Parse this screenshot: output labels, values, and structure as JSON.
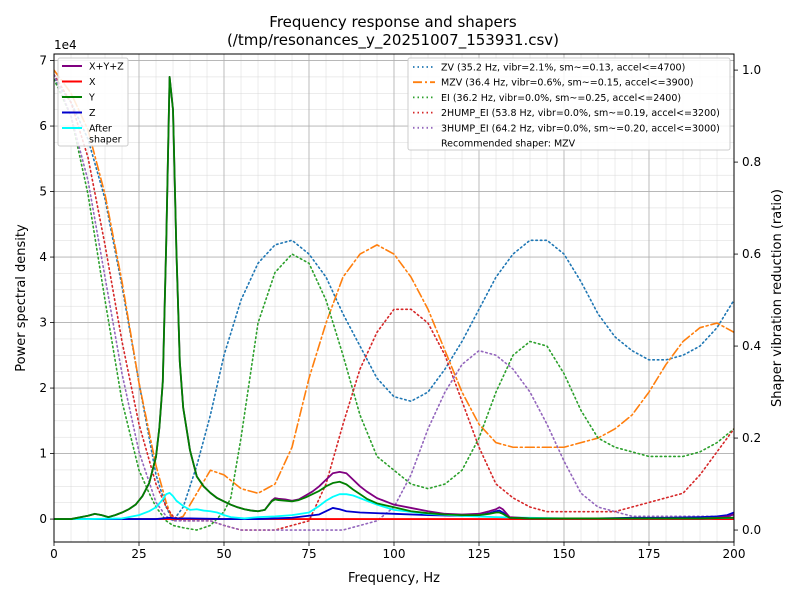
{
  "chart_data": {
    "type": "line",
    "title": "Frequency response and shapers",
    "subtitle": "(/tmp/resonances_y_20251007_153931.csv)",
    "xlabel": "Frequency, Hz",
    "ylabel": "Power spectral density",
    "y2label": "Shaper vibration reduction (ratio)",
    "y_multiplier_label": "1e4",
    "xlim": [
      0,
      200
    ],
    "ylim": [
      -0.35,
      7.1
    ],
    "y2lim": [
      -0.026,
      1.035
    ],
    "x_ticks": [
      0,
      25,
      50,
      75,
      100,
      125,
      150,
      175,
      200
    ],
    "y_ticks": [
      0,
      1,
      2,
      3,
      4,
      5,
      6,
      7
    ],
    "y2_ticks": [
      0.0,
      0.2,
      0.4,
      0.6,
      0.8,
      1.0
    ],
    "y2_tick_labels": [
      "0.0",
      "0.2",
      "0.4",
      "0.6",
      "0.8",
      "1.0"
    ],
    "grid": true,
    "psd_legend": {
      "placement": "top-left"
    },
    "shaper_legend": {
      "placement": "top-right",
      "note": "Recommended shaper: MZV"
    },
    "psd_series": [
      {
        "name": "X+Y+Z",
        "color": "#800080",
        "dash": "solid",
        "x": [
          0,
          5,
          10,
          12,
          14,
          16,
          18,
          20,
          22,
          24,
          26,
          28,
          30,
          31,
          32,
          33,
          34,
          35,
          36,
          37,
          38,
          40,
          42,
          44,
          46,
          48,
          50,
          52,
          54,
          56,
          58,
          60,
          62,
          64,
          65,
          66,
          68,
          70,
          72,
          74,
          76,
          78,
          80,
          82,
          84,
          86,
          88,
          90,
          92,
          95,
          100,
          105,
          110,
          115,
          120,
          125,
          128,
          130,
          131,
          132,
          134,
          140,
          150,
          160,
          170,
          180,
          190,
          195,
          198,
          200
        ],
        "y": [
          0,
          0,
          0.05,
          0.08,
          0.06,
          0.03,
          0.06,
          0.1,
          0.15,
          0.22,
          0.35,
          0.55,
          0.95,
          1.4,
          2.1,
          4.2,
          6.75,
          6.25,
          4.1,
          2.4,
          1.7,
          1.05,
          0.65,
          0.5,
          0.4,
          0.32,
          0.27,
          0.22,
          0.18,
          0.15,
          0.13,
          0.12,
          0.14,
          0.28,
          0.32,
          0.31,
          0.3,
          0.28,
          0.3,
          0.36,
          0.42,
          0.5,
          0.6,
          0.7,
          0.72,
          0.7,
          0.6,
          0.5,
          0.42,
          0.32,
          0.22,
          0.17,
          0.12,
          0.08,
          0.07,
          0.08,
          0.12,
          0.15,
          0.18,
          0.15,
          0.03,
          0.01,
          0.01,
          0.01,
          0.01,
          0.01,
          0.01,
          0.02,
          0.04,
          0.07
        ]
      },
      {
        "name": "X",
        "color": "#ff0000",
        "dash": "solid",
        "x": [
          0,
          20,
          40,
          60,
          80,
          100,
          130,
          160,
          180,
          200
        ],
        "y": [
          0,
          0,
          0,
          0,
          0,
          0,
          0,
          0,
          0,
          0
        ]
      },
      {
        "name": "Y",
        "color": "#008000",
        "dash": "solid",
        "x": [
          0,
          5,
          10,
          12,
          14,
          16,
          18,
          20,
          22,
          24,
          26,
          28,
          30,
          31,
          32,
          33,
          34,
          35,
          36,
          37,
          38,
          40,
          42,
          44,
          46,
          48,
          50,
          52,
          54,
          56,
          58,
          60,
          62,
          64,
          65,
          66,
          68,
          70,
          72,
          74,
          76,
          78,
          80,
          82,
          84,
          86,
          88,
          90,
          92,
          95,
          100,
          105,
          110,
          115,
          120,
          125,
          128,
          130,
          131,
          132,
          134,
          140,
          150,
          160,
          170,
          180,
          190,
          200
        ],
        "y": [
          0,
          0,
          0.05,
          0.08,
          0.06,
          0.03,
          0.06,
          0.1,
          0.15,
          0.22,
          0.35,
          0.55,
          0.95,
          1.4,
          2.1,
          4.2,
          6.75,
          6.25,
          4.1,
          2.4,
          1.7,
          1.05,
          0.65,
          0.5,
          0.4,
          0.32,
          0.27,
          0.22,
          0.18,
          0.15,
          0.13,
          0.12,
          0.14,
          0.27,
          0.3,
          0.29,
          0.28,
          0.27,
          0.29,
          0.33,
          0.38,
          0.43,
          0.5,
          0.55,
          0.57,
          0.53,
          0.45,
          0.38,
          0.31,
          0.24,
          0.18,
          0.12,
          0.09,
          0.07,
          0.06,
          0.06,
          0.08,
          0.1,
          0.1,
          0.08,
          0.02,
          0.01,
          0.01,
          0.01,
          0.01,
          0.01,
          0.01,
          0.02
        ]
      },
      {
        "name": "Z",
        "color": "#0000cd",
        "dash": "solid",
        "x": [
          0,
          20,
          30,
          34,
          36,
          40,
          50,
          60,
          70,
          78,
          80,
          82,
          84,
          86,
          90,
          100,
          110,
          120,
          125,
          128,
          130,
          131,
          132,
          134,
          140,
          150,
          160,
          170,
          180,
          190,
          195,
          198,
          200
        ],
        "y": [
          0,
          0,
          0,
          0.02,
          0.01,
          0.01,
          0,
          0,
          0.02,
          0.07,
          0.12,
          0.17,
          0.15,
          0.12,
          0.1,
          0.08,
          0.06,
          0.05,
          0.06,
          0.09,
          0.12,
          0.13,
          0.1,
          0.02,
          0.01,
          0.01,
          0.01,
          0.02,
          0.02,
          0.03,
          0.04,
          0.06,
          0.1
        ]
      },
      {
        "name": "After\nshaper",
        "color": "#00ffff",
        "dash": "solid",
        "x": [
          0,
          10,
          20,
          25,
          28,
          30,
          32,
          33,
          34,
          35,
          36,
          38,
          40,
          42,
          44,
          46,
          48,
          50,
          52,
          54,
          56,
          58,
          60,
          65,
          70,
          75,
          78,
          80,
          82,
          84,
          86,
          88,
          90,
          95,
          100,
          110,
          120,
          130,
          140,
          150,
          170,
          190,
          200
        ],
        "y": [
          0,
          0,
          0.01,
          0.06,
          0.12,
          0.18,
          0.3,
          0.38,
          0.4,
          0.35,
          0.28,
          0.2,
          0.14,
          0.15,
          0.13,
          0.12,
          0.1,
          0.06,
          0.03,
          0.02,
          0.01,
          0.02,
          0.03,
          0.04,
          0.06,
          0.1,
          0.2,
          0.28,
          0.34,
          0.38,
          0.38,
          0.36,
          0.32,
          0.22,
          0.14,
          0.08,
          0.05,
          0.03,
          0.02,
          0.01,
          0.01,
          0.01,
          0.02
        ]
      }
    ],
    "shaper_series": [
      {
        "name": "ZV (35.2 Hz, vibr=2.1%, sm~=0.13, accel<=4700)",
        "color": "#1f77b4",
        "dash": "dotted",
        "x": [
          0,
          5,
          10,
          15,
          20,
          25,
          30,
          33,
          35,
          38,
          42,
          46,
          50,
          55,
          60,
          65,
          70,
          75,
          80,
          85,
          90,
          95,
          100,
          105,
          110,
          115,
          120,
          125,
          130,
          135,
          140,
          145,
          150,
          155,
          160,
          165,
          170,
          175,
          180,
          185,
          190,
          195,
          200
        ],
        "y": [
          0.98,
          0.93,
          0.85,
          0.72,
          0.53,
          0.32,
          0.12,
          0.05,
          0.02,
          0.05,
          0.14,
          0.25,
          0.38,
          0.5,
          0.58,
          0.62,
          0.63,
          0.6,
          0.55,
          0.47,
          0.4,
          0.33,
          0.29,
          0.28,
          0.3,
          0.35,
          0.41,
          0.48,
          0.55,
          0.6,
          0.63,
          0.63,
          0.6,
          0.54,
          0.47,
          0.42,
          0.39,
          0.37,
          0.37,
          0.38,
          0.4,
          0.44,
          0.5
        ]
      },
      {
        "name": "MZV (36.4 Hz, vibr=0.6%, sm~=0.15, accel<=3900)",
        "color": "#ff7f0e",
        "dash": "dashdot",
        "x": [
          0,
          5,
          10,
          15,
          20,
          25,
          30,
          33,
          35,
          38,
          42,
          46,
          50,
          55,
          60,
          65,
          70,
          75,
          80,
          85,
          90,
          95,
          100,
          105,
          110,
          115,
          120,
          125,
          130,
          135,
          140,
          145,
          150,
          155,
          160,
          165,
          170,
          175,
          180,
          185,
          190,
          195,
          200
        ],
        "y": [
          1.0,
          0.95,
          0.87,
          0.73,
          0.54,
          0.32,
          0.14,
          0.06,
          0.02,
          0.03,
          0.08,
          0.13,
          0.12,
          0.09,
          0.08,
          0.1,
          0.18,
          0.33,
          0.45,
          0.55,
          0.6,
          0.62,
          0.6,
          0.55,
          0.48,
          0.39,
          0.3,
          0.23,
          0.19,
          0.18,
          0.18,
          0.18,
          0.18,
          0.19,
          0.2,
          0.22,
          0.25,
          0.3,
          0.36,
          0.41,
          0.44,
          0.45,
          0.43
        ]
      },
      {
        "name": "EI (36.2 Hz, vibr=0.0%, sm~=0.25, accel<=2400)",
        "color": "#2ca02c",
        "dash": "dotted",
        "x": [
          0,
          5,
          10,
          15,
          20,
          25,
          28,
          30,
          33,
          35,
          38,
          42,
          46,
          50,
          52,
          55,
          60,
          65,
          70,
          75,
          80,
          85,
          90,
          95,
          100,
          105,
          110,
          115,
          120,
          125,
          130,
          135,
          140,
          145,
          150,
          155,
          160,
          165,
          170,
          175,
          180,
          185,
          190,
          195,
          200
        ],
        "y": [
          0.98,
          0.9,
          0.73,
          0.5,
          0.28,
          0.13,
          0.08,
          0.05,
          0.02,
          0.01,
          0.005,
          0.0,
          0.01,
          0.04,
          0.07,
          0.2,
          0.45,
          0.56,
          0.6,
          0.58,
          0.5,
          0.38,
          0.25,
          0.16,
          0.13,
          0.1,
          0.09,
          0.1,
          0.13,
          0.2,
          0.3,
          0.38,
          0.41,
          0.4,
          0.34,
          0.26,
          0.2,
          0.18,
          0.17,
          0.16,
          0.16,
          0.16,
          0.17,
          0.19,
          0.22
        ]
      },
      {
        "name": "2HUMP_EI (53.8 Hz, vibr=0.0%, sm~=0.19, accel<=3200)",
        "color": "#d62728",
        "dash": "dotted",
        "x": [
          0,
          5,
          10,
          15,
          20,
          25,
          30,
          33,
          35,
          38,
          42,
          46,
          50,
          55,
          60,
          65,
          70,
          75,
          80,
          85,
          90,
          95,
          100,
          105,
          110,
          115,
          120,
          125,
          130,
          135,
          140,
          145,
          150,
          155,
          160,
          165,
          170,
          175,
          180,
          185,
          190,
          195,
          200
        ],
        "y": [
          0.99,
          0.93,
          0.81,
          0.62,
          0.41,
          0.23,
          0.1,
          0.05,
          0.03,
          0.02,
          0.02,
          0.02,
          0.01,
          0.0,
          0.0,
          0.0,
          0.01,
          0.02,
          0.1,
          0.23,
          0.35,
          0.43,
          0.48,
          0.48,
          0.45,
          0.38,
          0.28,
          0.18,
          0.1,
          0.07,
          0.05,
          0.04,
          0.04,
          0.04,
          0.04,
          0.04,
          0.05,
          0.06,
          0.07,
          0.08,
          0.12,
          0.17,
          0.22
        ]
      },
      {
        "name": "3HUMP_EI (64.2 Hz, vibr=0.0%, sm~=0.20, accel<=3000)",
        "color": "#9467bd",
        "dash": "dotted",
        "x": [
          0,
          5,
          10,
          15,
          20,
          25,
          30,
          33,
          35,
          38,
          42,
          46,
          50,
          55,
          60,
          65,
          70,
          75,
          80,
          85,
          90,
          95,
          100,
          105,
          110,
          115,
          120,
          125,
          130,
          135,
          140,
          145,
          150,
          155,
          160,
          165,
          170,
          175,
          180,
          185,
          190,
          195,
          200
        ],
        "y": [
          0.99,
          0.9,
          0.76,
          0.55,
          0.34,
          0.17,
          0.06,
          0.03,
          0.02,
          0.02,
          0.02,
          0.02,
          0.01,
          0.0,
          0.0,
          0.0,
          0.0,
          0.0,
          0.0,
          0.0,
          0.01,
          0.02,
          0.05,
          0.12,
          0.22,
          0.3,
          0.36,
          0.39,
          0.38,
          0.35,
          0.3,
          0.23,
          0.15,
          0.08,
          0.05,
          0.04,
          0.03,
          0.03,
          0.03,
          0.03,
          0.03,
          0.03,
          0.03
        ]
      }
    ]
  }
}
